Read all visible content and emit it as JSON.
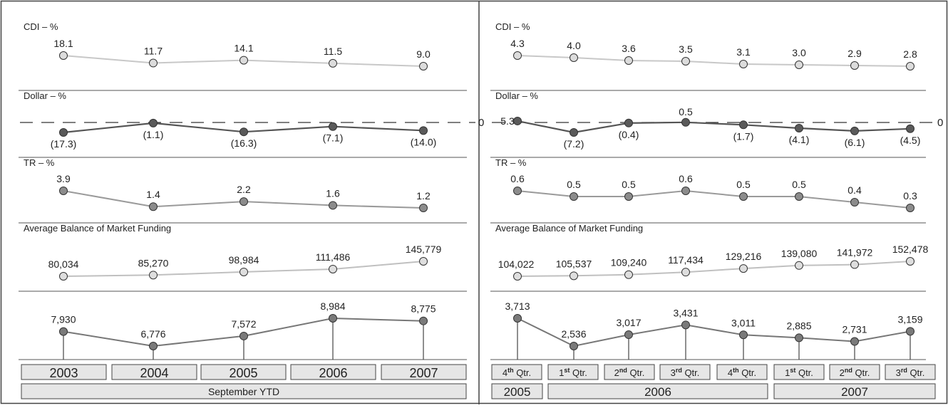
{
  "colors": {
    "cdi": "#c8c8c8",
    "dollar": "#555555",
    "tr": "#9a9a9a",
    "avg": "#c0c0c0",
    "bottom": "#777777",
    "header_fill": "#e6e6e6"
  },
  "left": {
    "panels": [
      {
        "label": "CDI – %",
        "values": [
          18.1,
          11.7,
          14.1,
          11.5,
          9.0
        ],
        "value_labels": [
          "18.1",
          "11.7",
          "14.1",
          "11.5",
          "9.0"
        ]
      },
      {
        "label": "Dollar – %",
        "zero_label": "0",
        "values": [
          -17.3,
          -1.1,
          -16.3,
          -7.1,
          -14.0
        ],
        "value_labels": [
          "(17.3)",
          "(1.1)",
          "(16.3)",
          "(7.1)",
          "(14.0)"
        ]
      },
      {
        "label": "TR – %",
        "values": [
          3.9,
          1.4,
          2.2,
          1.6,
          1.2
        ],
        "value_labels": [
          "3.9",
          "1.4",
          "2.2",
          "1.6",
          "1.2"
        ]
      },
      {
        "label": "Average Balance of Market Funding",
        "values": [
          80034,
          85270,
          98984,
          111486,
          145779
        ],
        "value_labels": [
          "80,034",
          "85,270",
          "98,984",
          "111,486",
          "145,779"
        ]
      },
      {
        "label": "",
        "values": [
          7930,
          6776,
          7572,
          8984,
          8775
        ],
        "value_labels": [
          "7,930",
          "6,776",
          "7,572",
          "8,984",
          "8,775"
        ]
      }
    ],
    "categories": [
      "2003",
      "2004",
      "2005",
      "2006",
      "2007"
    ],
    "group_label": "September YTD"
  },
  "right": {
    "panels": [
      {
        "label": "CDI – %",
        "values": [
          4.3,
          4.0,
          3.6,
          3.5,
          3.1,
          3.0,
          2.9,
          2.8
        ],
        "value_labels": [
          "4.3",
          "4.0",
          "3.6",
          "3.5",
          "3.1",
          "3.0",
          "2.9",
          "2.8"
        ]
      },
      {
        "label": "Dollar – %",
        "zero_label": "0",
        "values": [
          5.3,
          -7.2,
          -0.4,
          0.5,
          -1.7,
          -4.1,
          -6.1,
          -4.5
        ],
        "value_labels": [
          "5.3",
          "(7.2)",
          "(0.4)",
          "0.5",
          "(1.7)",
          "(4.1)",
          "(6.1)",
          "(4.5)"
        ]
      },
      {
        "label": "TR – %",
        "values": [
          0.6,
          0.5,
          0.5,
          0.6,
          0.5,
          0.5,
          0.4,
          0.3
        ],
        "value_labels": [
          "0.6",
          "0.5",
          "0.5",
          "0.6",
          "0.5",
          "0.5",
          "0.4",
          "0.3"
        ]
      },
      {
        "label": "Average Balance of Market Funding",
        "values": [
          104022,
          105537,
          109240,
          117434,
          129216,
          139080,
          141972,
          152478
        ],
        "value_labels": [
          "104,022",
          "105,537",
          "109,240",
          "117,434",
          "129,216",
          "139,080",
          "141,972",
          "152,478"
        ]
      },
      {
        "label": "",
        "values": [
          3713,
          2536,
          3017,
          3431,
          3011,
          2885,
          2731,
          3159
        ],
        "value_labels": [
          "3,713",
          "2,536",
          "3,017",
          "3,431",
          "3,011",
          "2,885",
          "2,731",
          "3,159"
        ]
      }
    ],
    "quarters": [
      {
        "num": "4",
        "sup": "th",
        "rest": " Qtr."
      },
      {
        "num": "1",
        "sup": "st",
        "rest": " Qtr."
      },
      {
        "num": "2",
        "sup": "nd",
        "rest": " Qtr."
      },
      {
        "num": "3",
        "sup": "rd",
        "rest": " Qtr."
      },
      {
        "num": "4",
        "sup": "th",
        "rest": " Qtr."
      },
      {
        "num": "1",
        "sup": "st",
        "rest": " Qtr."
      },
      {
        "num": "2",
        "sup": "nd",
        "rest": " Qtr."
      },
      {
        "num": "3",
        "sup": "rd",
        "rest": " Qtr."
      }
    ],
    "years": [
      "2005",
      "2006",
      "2007"
    ]
  },
  "chart_data": [
    {
      "type": "line",
      "title": "CDI – %",
      "categories": [
        "2003",
        "2004",
        "2005",
        "2006",
        "2007"
      ],
      "series": [
        {
          "values": [
            18.1,
            11.7,
            14.1,
            11.5,
            9.0
          ]
        }
      ]
    },
    {
      "type": "line",
      "title": "Dollar – %",
      "categories": [
        "2003",
        "2004",
        "2005",
        "2006",
        "2007"
      ],
      "series": [
        {
          "values": [
            -17.3,
            -1.1,
            -16.3,
            -7.1,
            -14.0
          ]
        }
      ]
    },
    {
      "type": "line",
      "title": "TR – %",
      "categories": [
        "2003",
        "2004",
        "2005",
        "2006",
        "2007"
      ],
      "series": [
        {
          "values": [
            3.9,
            1.4,
            2.2,
            1.6,
            1.2
          ]
        }
      ]
    },
    {
      "type": "line",
      "title": "Average Balance of Market Funding",
      "categories": [
        "2003",
        "2004",
        "2005",
        "2006",
        "2007"
      ],
      "series": [
        {
          "values": [
            80034,
            85270,
            98984,
            111486,
            145779
          ]
        }
      ]
    },
    {
      "type": "line",
      "categories": [
        "2003",
        "2004",
        "2005",
        "2006",
        "2007"
      ],
      "series": [
        {
          "values": [
            7930,
            6776,
            7572,
            8984,
            8775
          ]
        }
      ]
    },
    {
      "type": "line",
      "title": "CDI – %",
      "categories": [
        "4th Qtr. 2005",
        "1st Qtr. 2006",
        "2nd Qtr. 2006",
        "3rd Qtr. 2006",
        "4th Qtr. 2006",
        "1st Qtr. 2007",
        "2nd Qtr. 2007",
        "3rd Qtr. 2007"
      ],
      "series": [
        {
          "values": [
            4.3,
            4.0,
            3.6,
            3.5,
            3.1,
            3.0,
            2.9,
            2.8
          ]
        }
      ]
    },
    {
      "type": "line",
      "title": "Dollar – %",
      "categories": [
        "4th Qtr. 2005",
        "1st Qtr. 2006",
        "2nd Qtr. 2006",
        "3rd Qtr. 2006",
        "4th Qtr. 2006",
        "1st Qtr. 2007",
        "2nd Qtr. 2007",
        "3rd Qtr. 2007"
      ],
      "series": [
        {
          "values": [
            5.3,
            -7.2,
            -0.4,
            0.5,
            -1.7,
            -4.1,
            -6.1,
            -4.5
          ]
        }
      ]
    },
    {
      "type": "line",
      "title": "TR – %",
      "categories": [
        "4th Qtr. 2005",
        "1st Qtr. 2006",
        "2nd Qtr. 2006",
        "3rd Qtr. 2006",
        "4th Qtr. 2006",
        "1st Qtr. 2007",
        "2nd Qtr. 2007",
        "3rd Qtr. 2007"
      ],
      "series": [
        {
          "values": [
            0.6,
            0.5,
            0.5,
            0.6,
            0.5,
            0.5,
            0.4,
            0.3
          ]
        }
      ]
    },
    {
      "type": "line",
      "title": "Average Balance of Market Funding",
      "categories": [
        "4th Qtr. 2005",
        "1st Qtr. 2006",
        "2nd Qtr. 2006",
        "3rd Qtr. 2006",
        "4th Qtr. 2006",
        "1st Qtr. 2007",
        "2nd Qtr. 2007",
        "3rd Qtr. 2007"
      ],
      "series": [
        {
          "values": [
            104022,
            105537,
            109240,
            117434,
            129216,
            139080,
            141972,
            152478
          ]
        }
      ]
    },
    {
      "type": "line",
      "categories": [
        "4th Qtr. 2005",
        "1st Qtr. 2006",
        "2nd Qtr. 2006",
        "3rd Qtr. 2006",
        "4th Qtr. 2006",
        "1st Qtr. 2007",
        "2nd Qtr. 2007",
        "3rd Qtr. 2007"
      ],
      "series": [
        {
          "values": [
            3713,
            2536,
            3017,
            3431,
            3011,
            2885,
            2731,
            3159
          ]
        }
      ]
    }
  ]
}
